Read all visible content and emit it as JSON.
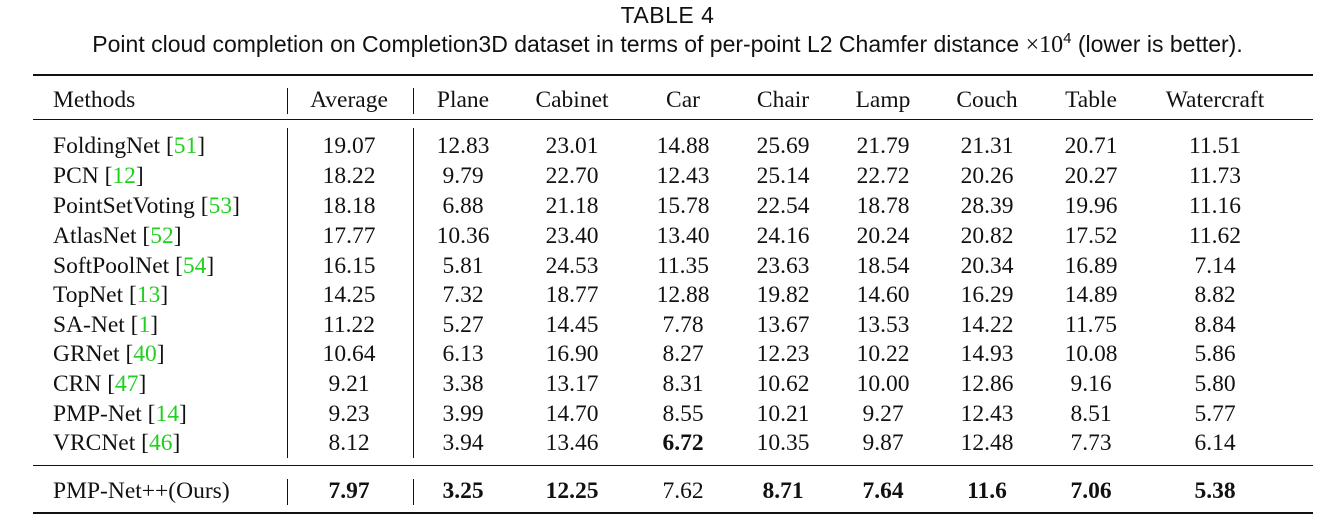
{
  "table": {
    "label": "TABLE 4",
    "caption_text": "Point cloud completion on Completion3D dataset in terms of per-point L2 Chamfer distance",
    "caption_math": "×10",
    "caption_exponent": "4",
    "caption_suffix": "(lower is better).",
    "headers": [
      "Methods",
      "Average",
      "Plane",
      "Cabinet",
      "Car",
      "Chair",
      "Lamp",
      "Couch",
      "Table",
      "Watercraft"
    ],
    "rows": [
      {
        "method": "FoldingNet",
        "ref": "51",
        "values": [
          "19.07",
          "12.83",
          "23.01",
          "14.88",
          "25.69",
          "21.79",
          "21.31",
          "20.71",
          "11.51"
        ]
      },
      {
        "method": "PCN",
        "ref": "12",
        "values": [
          "18.22",
          "9.79",
          "22.70",
          "12.43",
          "25.14",
          "22.72",
          "20.26",
          "20.27",
          "11.73"
        ]
      },
      {
        "method": "PointSetVoting",
        "ref": "53",
        "values": [
          "18.18",
          "6.88",
          "21.18",
          "15.78",
          "22.54",
          "18.78",
          "28.39",
          "19.96",
          "11.16"
        ]
      },
      {
        "method": "AtlasNet",
        "ref": "52",
        "values": [
          "17.77",
          "10.36",
          "23.40",
          "13.40",
          "24.16",
          "20.24",
          "20.82",
          "17.52",
          "11.62"
        ]
      },
      {
        "method": "SoftPoolNet",
        "ref": "54",
        "values": [
          "16.15",
          "5.81",
          "24.53",
          "11.35",
          "23.63",
          "18.54",
          "20.34",
          "16.89",
          "7.14"
        ]
      },
      {
        "method": "TopNet",
        "ref": "13",
        "values": [
          "14.25",
          "7.32",
          "18.77",
          "12.88",
          "19.82",
          "14.60",
          "16.29",
          "14.89",
          "8.82"
        ]
      },
      {
        "method": "SA-Net",
        "ref": "1",
        "values": [
          "11.22",
          "5.27",
          "14.45",
          "7.78",
          "13.67",
          "13.53",
          "14.22",
          "11.75",
          "8.84"
        ]
      },
      {
        "method": "GRNet",
        "ref": "40",
        "values": [
          "10.64",
          "6.13",
          "16.90",
          "8.27",
          "12.23",
          "10.22",
          "14.93",
          "10.08",
          "5.86"
        ]
      },
      {
        "method": "CRN",
        "ref": "47",
        "values": [
          "9.21",
          "3.38",
          "13.17",
          "8.31",
          "10.62",
          "10.00",
          "12.86",
          "9.16",
          "5.80"
        ]
      },
      {
        "method": "PMP-Net",
        "ref": "14",
        "values": [
          "9.23",
          "3.99",
          "14.70",
          "8.55",
          "10.21",
          "9.27",
          "12.43",
          "8.51",
          "5.77"
        ]
      },
      {
        "method": "VRCNet",
        "ref": "46",
        "values": [
          "8.12",
          "3.94",
          "13.46",
          "6.72",
          "10.35",
          "9.87",
          "12.48",
          "7.73",
          "6.14"
        ],
        "bold": [
          false,
          false,
          false,
          true,
          false,
          false,
          false,
          false,
          false
        ]
      },
      {
        "method": "PMP-Net++(Ours)",
        "ref": "",
        "values": [
          "7.97",
          "3.25",
          "12.25",
          "7.62",
          "8.71",
          "7.64",
          "11.6",
          "7.06",
          "5.38"
        ],
        "bold": [
          true,
          true,
          true,
          false,
          true,
          true,
          true,
          true,
          true
        ]
      }
    ]
  }
}
